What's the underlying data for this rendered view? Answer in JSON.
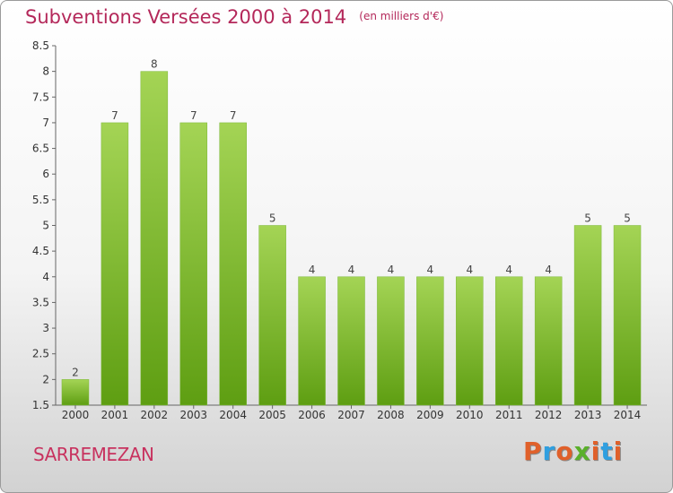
{
  "title": "Subventions Versées 2000 à 2014",
  "subtitle": "(en milliers d'€)",
  "commune": "SARREMEZAN",
  "logo": {
    "letters": [
      "P",
      "r",
      "o",
      "x",
      "i",
      "t",
      "i"
    ]
  },
  "colors": {
    "bar_light": "#a4d455",
    "bar_dark": "#5e9e12",
    "title": "#b4285a",
    "logo": [
      "#e0602a",
      "#2f9fe0",
      "#e0602a",
      "#5ab02a",
      "#e0602a",
      "#2f9fe0",
      "#e0602a"
    ]
  },
  "chart_data": {
    "type": "bar",
    "categories": [
      "2000",
      "2001",
      "2002",
      "2003",
      "2004",
      "2005",
      "2006",
      "2007",
      "2008",
      "2009",
      "2010",
      "2011",
      "2012",
      "2013",
      "2014"
    ],
    "values": [
      2,
      7,
      8,
      7,
      7,
      5,
      4,
      4,
      4,
      4,
      4,
      4,
      4,
      5,
      5
    ],
    "ylim": [
      1.5,
      8.5
    ],
    "yticks": [
      "1.5",
      "2",
      "2.5",
      "3",
      "3.5",
      "4",
      "4.5",
      "5",
      "5.5",
      "6",
      "6.5",
      "7",
      "7.5",
      "8",
      "8.5"
    ],
    "grid": false,
    "legend": "none"
  }
}
